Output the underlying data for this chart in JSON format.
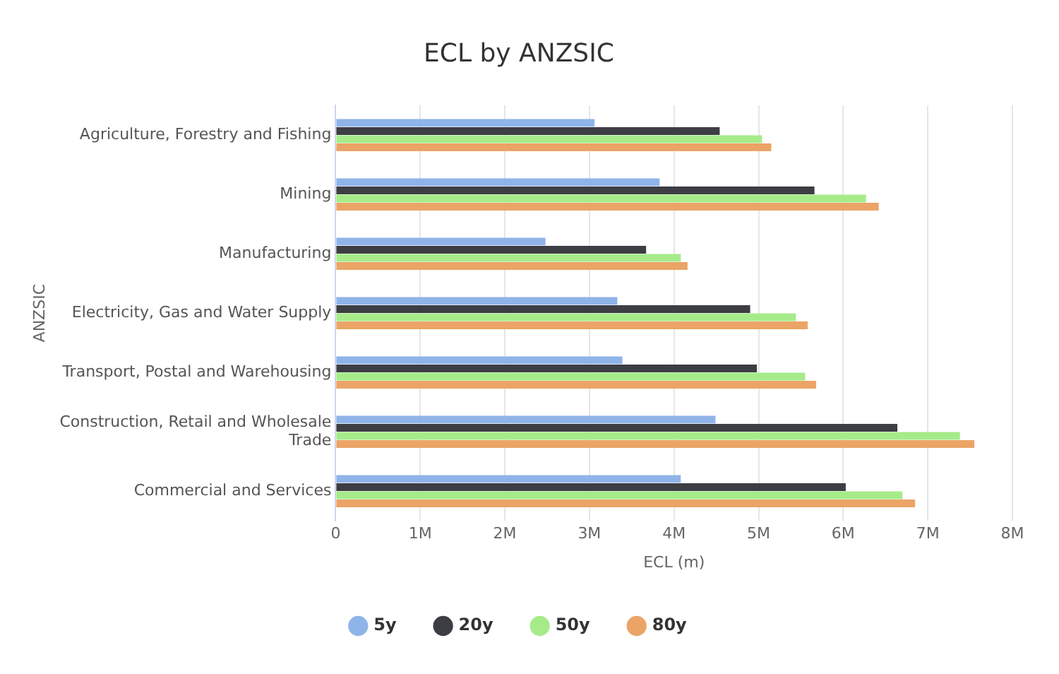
{
  "chart_data": {
    "type": "bar",
    "orientation": "horizontal",
    "title": "ECL by ANZSIC",
    "xlabel": "ECL (m)",
    "ylabel": "ANZSIC",
    "categories": [
      "Agriculture, Forestry and Fishing",
      "Mining",
      "Manufacturing",
      "Electricity, Gas and Water Supply",
      "Transport, Postal and Warehousing",
      "Construction, Retail and Wholesale Trade",
      "Commercial and Services"
    ],
    "series": [
      {
        "name": "5y",
        "color": "#8fb4ea",
        "values": [
          3060000,
          3830000,
          2480000,
          3330000,
          3390000,
          4490000,
          4080000
        ]
      },
      {
        "name": "20y",
        "color": "#3d3d44",
        "values": [
          4540000,
          5660000,
          3670000,
          4900000,
          4980000,
          6640000,
          6030000
        ]
      },
      {
        "name": "50y",
        "color": "#a6eb8a",
        "values": [
          5040000,
          6270000,
          4080000,
          5440000,
          5550000,
          7380000,
          6700000
        ]
      },
      {
        "name": "80y",
        "color": "#eba466",
        "values": [
          5150000,
          6420000,
          4160000,
          5580000,
          5680000,
          7550000,
          6850000
        ]
      }
    ],
    "xlim": [
      0,
      8000000
    ],
    "xticks": [
      0,
      {
        "value": 1000000,
        "label": "1M"
      },
      {
        "value": 2000000,
        "label": "2M"
      },
      {
        "value": 3000000,
        "label": "3M"
      },
      {
        "value": 4000000,
        "label": "4M"
      },
      {
        "value": 5000000,
        "label": "5M"
      },
      {
        "value": 6000000,
        "label": "6M"
      },
      {
        "value": 7000000,
        "label": "7M"
      },
      {
        "value": 8000000,
        "label": "8M"
      }
    ],
    "grid": "x",
    "legend": "bottom"
  }
}
